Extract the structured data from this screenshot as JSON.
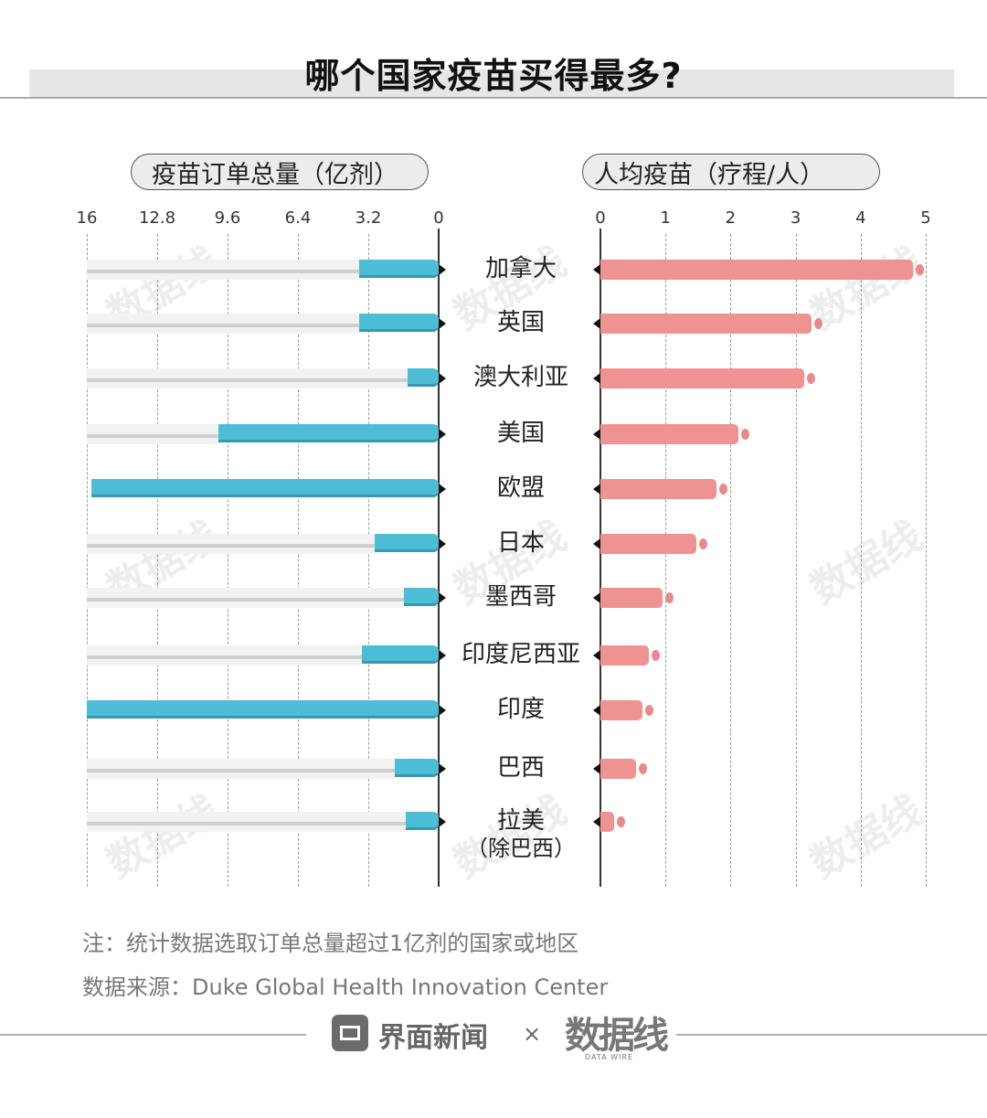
{
  "title": "哪个国家疫苗买得最多?",
  "left_panel": {
    "label": "疫苗订单总量（亿剂）",
    "ticks": [
      "16",
      "12.8",
      "9.6",
      "6.4",
      "3.2",
      "0"
    ]
  },
  "right_panel": {
    "label": "人均疫苗（疗程/人）",
    "ticks": [
      "0",
      "1",
      "2",
      "3",
      "4",
      "5"
    ]
  },
  "categories": [
    {
      "name": "加拿大",
      "sub": ""
    },
    {
      "name": "英国",
      "sub": ""
    },
    {
      "name": "澳大利亚",
      "sub": ""
    },
    {
      "name": "美国",
      "sub": ""
    },
    {
      "name": "欧盟",
      "sub": ""
    },
    {
      "name": "日本",
      "sub": ""
    },
    {
      "name": "墨西哥",
      "sub": ""
    },
    {
      "name": "印度尼西亚",
      "sub": ""
    },
    {
      "name": "印度",
      "sub": ""
    },
    {
      "name": "巴西",
      "sub": ""
    },
    {
      "name": "拉美",
      "sub": "（除巴西）"
    }
  ],
  "note": "注：统计数据选取订单总量超过1亿剂的国家或地区",
  "source": "数据来源：Duke Global Health Innovation Center",
  "footer": {
    "brand": "界面新闻",
    "times": "×",
    "partner": "数据线",
    "partner_sub": "DATA WIRE"
  },
  "watermark": "数据线",
  "colors": {
    "left_bar": "#4dbdd6",
    "right_bar": "#ee9392",
    "track": "#f2f2f2"
  },
  "chart_data": [
    {
      "type": "bar",
      "title": "疫苗订单总量（亿剂）",
      "orientation": "horizontal-reversed",
      "categories": [
        "加拿大",
        "英国",
        "澳大利亚",
        "美国",
        "欧盟",
        "日本",
        "墨西哥",
        "印度尼西亚",
        "印度",
        "巴西",
        "拉美（除巴西）"
      ],
      "values": [
        3.6,
        3.6,
        1.4,
        10.0,
        15.8,
        2.9,
        1.6,
        3.5,
        16.0,
        2.0,
        1.5
      ],
      "xlabel": "疫苗订单总量（亿剂）",
      "ylabel": "",
      "xlim": [
        0,
        16
      ],
      "xticks": [
        16,
        12.8,
        9.6,
        6.4,
        3.2,
        0
      ],
      "grid": true
    },
    {
      "type": "bar",
      "title": "人均疫苗（疗程/人）",
      "orientation": "horizontal",
      "categories": [
        "加拿大",
        "英国",
        "澳大利亚",
        "美国",
        "欧盟",
        "日本",
        "墨西哥",
        "印度尼西亚",
        "印度",
        "巴西",
        "拉美（除巴西）"
      ],
      "values": [
        4.8,
        3.25,
        3.13,
        2.12,
        1.78,
        1.47,
        0.95,
        0.74,
        0.65,
        0.55,
        0.21
      ],
      "xlabel": "人均疫苗（疗程/人）",
      "ylabel": "",
      "xlim": [
        0,
        5
      ],
      "xticks": [
        0,
        1,
        2,
        3,
        4,
        5
      ],
      "grid": true
    }
  ]
}
